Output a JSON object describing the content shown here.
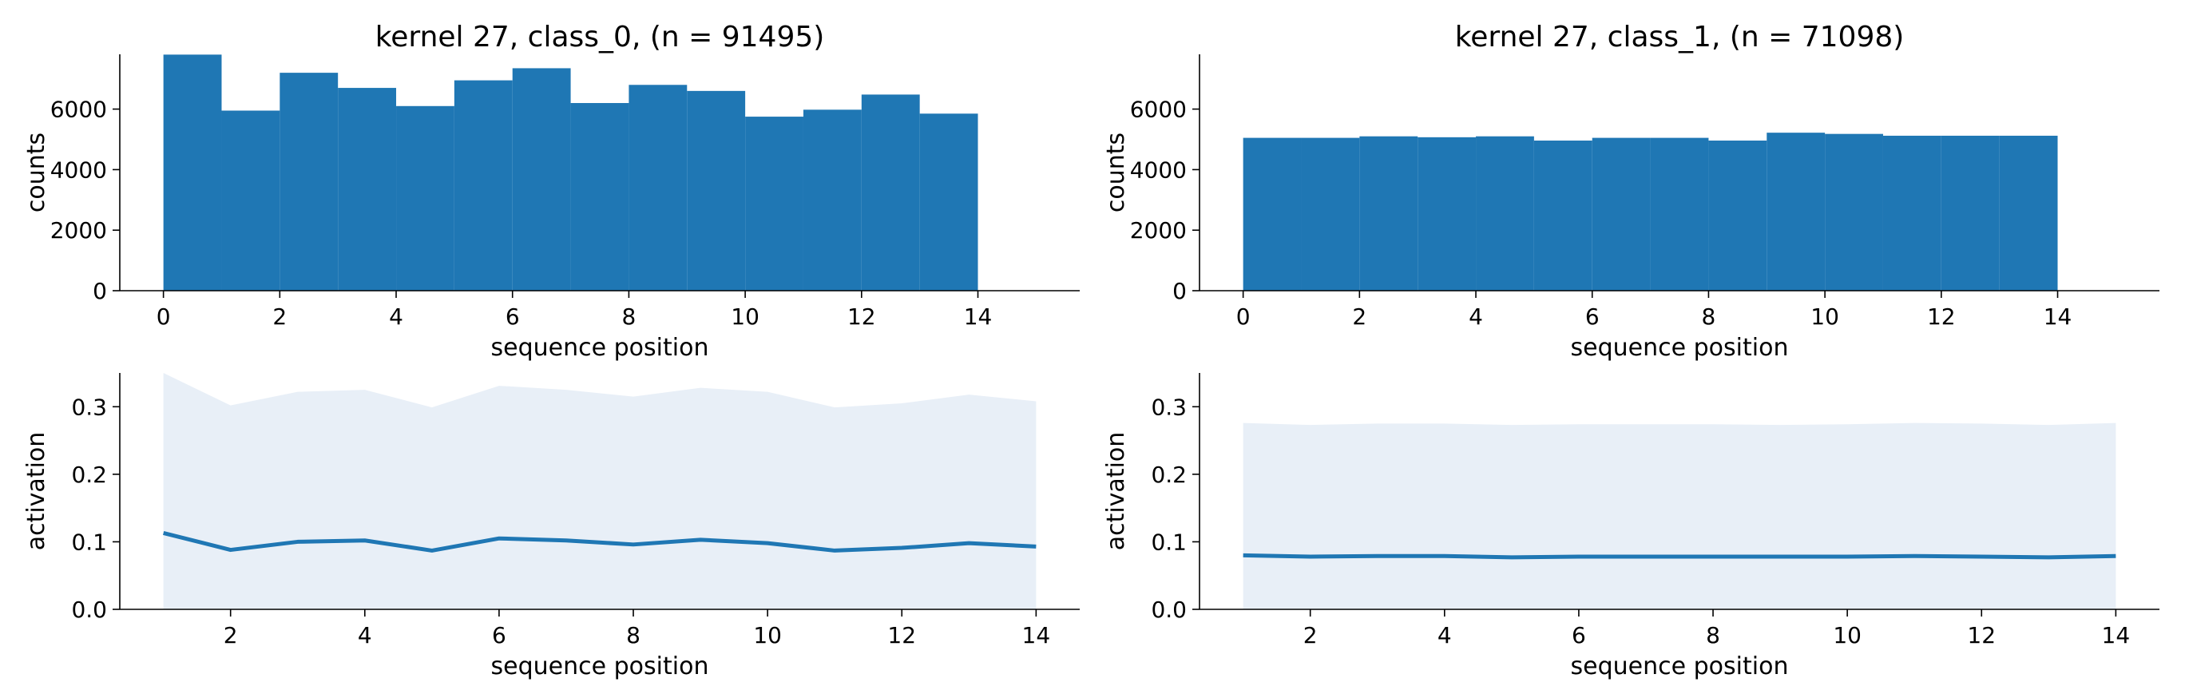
{
  "chart_data": [
    {
      "type": "bar",
      "title": "kernel 27, class_0, (n = 91495)",
      "xlabel": "sequence position",
      "ylabel": "counts",
      "xlim": [
        -0.75,
        15.75
      ],
      "ylim": [
        0,
        7810
      ],
      "xticks": [
        0,
        2,
        4,
        6,
        8,
        10,
        12,
        14
      ],
      "yticks": [
        0,
        2000,
        4000,
        6000
      ],
      "bin_edges": [
        0,
        1,
        2,
        3,
        4,
        5,
        6,
        7,
        8,
        9,
        10,
        11,
        12,
        13,
        14
      ],
      "values": [
        7800,
        5950,
        7200,
        6700,
        6100,
        6950,
        7350,
        6200,
        6800,
        6600,
        5750,
        5980,
        6480,
        5850
      ],
      "color": "#1f77b4",
      "grid": false
    },
    {
      "type": "bar",
      "title": "kernel 27, class_1, (n = 71098)",
      "xlabel": "sequence position",
      "ylabel": "counts",
      "xlim": [
        -0.75,
        15.75
      ],
      "ylim": [
        0,
        7810
      ],
      "xticks": [
        0,
        2,
        4,
        6,
        8,
        10,
        12,
        14
      ],
      "yticks": [
        0,
        2000,
        4000,
        6000
      ],
      "bin_edges": [
        0,
        1,
        2,
        3,
        4,
        5,
        6,
        7,
        8,
        9,
        10,
        11,
        12,
        13,
        14
      ],
      "values": [
        5050,
        5050,
        5100,
        5070,
        5100,
        4960,
        5050,
        5050,
        4960,
        5220,
        5180,
        5120,
        5120,
        5120
      ],
      "color": "#1f77b4",
      "grid": false
    },
    {
      "type": "line",
      "xlabel": "sequence position",
      "ylabel": "activation",
      "xlim": [
        0.35,
        14.65
      ],
      "ylim": [
        0,
        0.35
      ],
      "xticks": [
        2,
        4,
        6,
        8,
        10,
        12,
        14
      ],
      "yticks": [
        0.0,
        0.1,
        0.2,
        0.3
      ],
      "x": [
        1,
        2,
        3,
        4,
        5,
        6,
        7,
        8,
        9,
        10,
        11,
        12,
        13,
        14
      ],
      "mean": [
        0.113,
        0.088,
        0.1,
        0.102,
        0.087,
        0.105,
        0.102,
        0.096,
        0.103,
        0.098,
        0.087,
        0.091,
        0.098,
        0.093
      ],
      "band_upper": [
        0.35,
        0.302,
        0.322,
        0.325,
        0.299,
        0.331,
        0.325,
        0.315,
        0.328,
        0.322,
        0.299,
        0.305,
        0.318,
        0.308
      ],
      "band_lower": [
        0,
        0,
        0,
        0,
        0,
        0,
        0,
        0,
        0,
        0,
        0,
        0,
        0,
        0
      ],
      "color": "#1f77b4",
      "band_color": "#e8eff7",
      "grid": false
    },
    {
      "type": "line",
      "xlabel": "sequence position",
      "ylabel": "activation",
      "xlim": [
        0.35,
        14.65
      ],
      "ylim": [
        0,
        0.35
      ],
      "xticks": [
        2,
        4,
        6,
        8,
        10,
        12,
        14
      ],
      "yticks": [
        0.0,
        0.1,
        0.2,
        0.3
      ],
      "x": [
        1,
        2,
        3,
        4,
        5,
        6,
        7,
        8,
        9,
        10,
        11,
        12,
        13,
        14
      ],
      "mean": [
        0.08,
        0.078,
        0.079,
        0.079,
        0.077,
        0.078,
        0.078,
        0.078,
        0.078,
        0.078,
        0.079,
        0.078,
        0.077,
        0.079
      ],
      "band_upper": [
        0.276,
        0.273,
        0.275,
        0.275,
        0.273,
        0.274,
        0.274,
        0.274,
        0.273,
        0.274,
        0.276,
        0.275,
        0.273,
        0.276
      ],
      "band_lower": [
        0,
        0,
        0,
        0,
        0,
        0,
        0,
        0,
        0,
        0,
        0,
        0,
        0,
        0
      ],
      "color": "#1f77b4",
      "band_color": "#e8eff7",
      "grid": false
    }
  ]
}
